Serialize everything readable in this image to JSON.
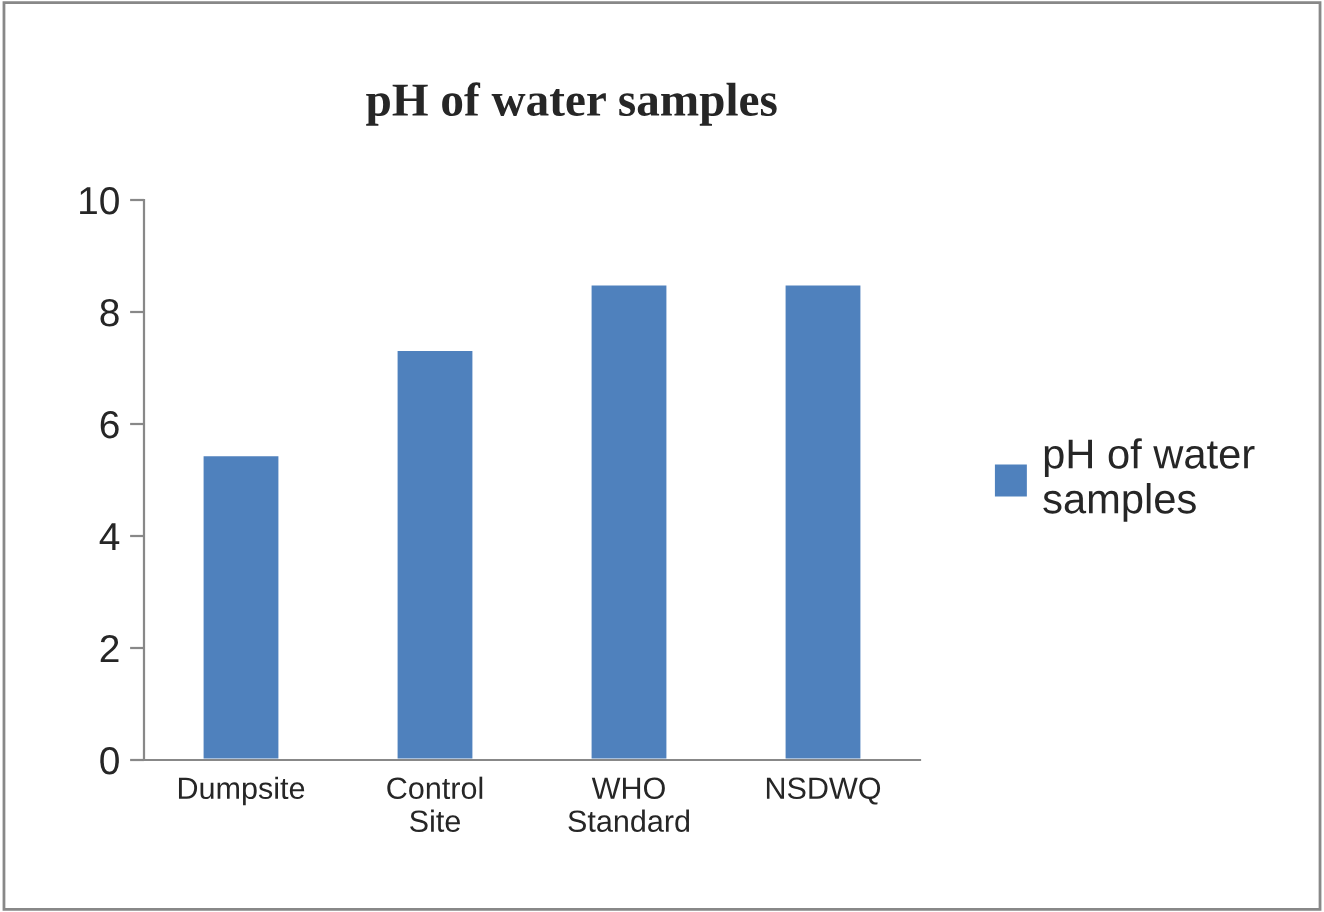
{
  "chart_data": {
    "type": "bar",
    "title": "pH of water samples",
    "categories": [
      "Dumpsite",
      "Control\nSite",
      "WHO\nStandard",
      "NSDWQ"
    ],
    "series": [
      {
        "name": "pH of water samples",
        "color": "#4f81bd",
        "values": [
          5.45,
          7.33,
          8.5,
          8.5
        ]
      }
    ],
    "ylim": [
      0,
      10
    ],
    "yticks": [
      0,
      2,
      4,
      6,
      8,
      10
    ],
    "grid": false,
    "legend": "right"
  }
}
